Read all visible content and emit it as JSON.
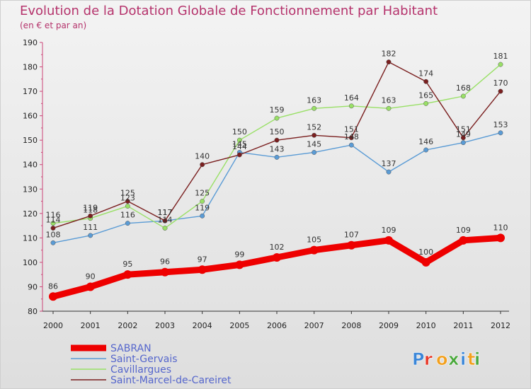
{
  "title": "Evolution de la Dotation Globale de Fonctionnement par Habitant",
  "subtitle": "(en € et par an)",
  "logo": {
    "text": "Proxiti",
    "colors": [
      "#3a86d8",
      "#e8392a",
      "#f2a01e",
      "#4aa83c",
      "#3a86d8",
      "#f2a01e",
      "#4aa83c"
    ]
  },
  "chart_data": {
    "type": "line",
    "x": [
      "2000",
      "2001",
      "2002",
      "2003",
      "2004",
      "2005",
      "2006",
      "2007",
      "2008",
      "2009",
      "2010",
      "2011",
      "2012"
    ],
    "ylim": [
      80,
      190
    ],
    "yticks": [
      80,
      90,
      100,
      110,
      120,
      130,
      140,
      150,
      160,
      170,
      180,
      190
    ],
    "grid": false,
    "legend": "bottom-left",
    "series": [
      {
        "name": "SABRAN",
        "color": "#ee0000",
        "values": [
          86,
          90,
          95,
          96,
          97,
          99,
          102,
          105,
          107,
          109,
          100,
          109,
          110
        ]
      },
      {
        "name": "Saint-Gervais",
        "color": "#5a9bd5",
        "values": [
          108,
          111,
          116,
          117,
          119,
          145,
          143,
          145,
          148,
          137,
          146,
          149,
          153
        ]
      },
      {
        "name": "Cavillargues",
        "color": "#99e066",
        "values": [
          116,
          118,
          123,
          114,
          125,
          150,
          159,
          163,
          164,
          163,
          165,
          168,
          181
        ]
      },
      {
        "name": "Saint-Marcel-de-Careiret",
        "color": "#7a1f1f",
        "values": [
          114,
          119,
          125,
          117,
          140,
          144,
          150,
          152,
          151,
          182,
          174,
          151,
          170
        ]
      }
    ]
  }
}
